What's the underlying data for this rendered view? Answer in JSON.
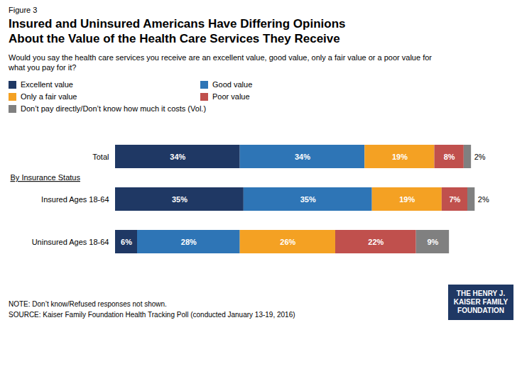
{
  "chart_data": {
    "type": "bar",
    "orientation": "horizontal",
    "stacked": true,
    "title": "Insured and Uninsured Americans Have Differing Opinions\nAbout the Value of the Health Care Services They Receive",
    "subtitle": "Would you say the health care services you receive are an excellent value, good value, only a fair value or a poor value for\nwhat you pay for it?",
    "annotations": [
      "Figure 3",
      "By Insurance Status",
      "NOTE: Don’t know/Refused responses not shown.",
      "SOURCE: Kaiser Family Foundation Health Tracking Poll (conducted January 13-19, 2016)",
      "THE HENRY J. KAISER FAMILY FOUNDATION"
    ],
    "categories": [
      "Total",
      "Insured Ages 18-64",
      "Uninsured Ages 18-64"
    ],
    "series": [
      {
        "name": "Excellent value",
        "color": "#1f3864",
        "values": [
          34,
          35,
          6
        ],
        "value_labels": [
          "34%",
          "35%",
          "6%"
        ]
      },
      {
        "name": "Good value",
        "color": "#2e75b6",
        "values": [
          34,
          35,
          28
        ],
        "value_labels": [
          "34%",
          "35%",
          "28%"
        ]
      },
      {
        "name": "Only a fair value",
        "color": "#f4a123",
        "values": [
          19,
          19,
          26
        ],
        "value_labels": [
          "19%",
          "19%",
          "26%"
        ]
      },
      {
        "name": "Poor value",
        "color": "#c0504d",
        "values": [
          8,
          7,
          22
        ],
        "value_labels": [
          "8%",
          "7%",
          "22%"
        ]
      },
      {
        "name": "Don’t pay directly/Don’t know how much it costs (Vol.)",
        "color": "#808080",
        "values": [
          2,
          2,
          9
        ],
        "value_labels": [
          "2%",
          "2%",
          "9%"
        ]
      }
    ],
    "xlim": [
      0,
      102
    ],
    "data_labels": true,
    "tick_labels": "y",
    "grid": false,
    "legend": "top"
  }
}
